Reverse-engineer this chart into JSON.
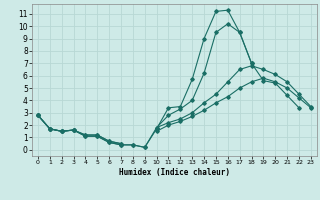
{
  "xlabel": "Humidex (Indice chaleur)",
  "bg_color": "#ceeae7",
  "grid_color": "#b8d8d5",
  "line_color": "#1a6e65",
  "xlim": [
    -0.5,
    23.5
  ],
  "ylim": [
    -0.5,
    11.8
  ],
  "xticks": [
    0,
    1,
    2,
    3,
    4,
    5,
    6,
    7,
    8,
    9,
    10,
    11,
    12,
    13,
    14,
    15,
    16,
    17,
    18,
    19,
    20,
    21,
    22,
    23
  ],
  "yticks": [
    0,
    1,
    2,
    3,
    4,
    5,
    6,
    7,
    8,
    9,
    10,
    11
  ],
  "line1_x": [
    0,
    1,
    2,
    3,
    4,
    5,
    6,
    7,
    8,
    9,
    10,
    11,
    12,
    13,
    14,
    15,
    16,
    17,
    18
  ],
  "line1_y": [
    2.8,
    1.7,
    1.5,
    1.6,
    1.1,
    1.1,
    0.6,
    0.4,
    0.4,
    0.2,
    1.7,
    3.4,
    3.5,
    5.7,
    9.0,
    11.2,
    11.3,
    9.5,
    7.0
  ],
  "line2_x": [
    0,
    1,
    2,
    3,
    4,
    5,
    6,
    7,
    8,
    9,
    10,
    11,
    12,
    13,
    14,
    15,
    16,
    17,
    18,
    19,
    20,
    21,
    22
  ],
  "line2_y": [
    2.8,
    1.7,
    1.5,
    1.6,
    1.1,
    1.1,
    0.6,
    0.4,
    0.4,
    0.2,
    1.8,
    2.8,
    3.3,
    4.0,
    6.2,
    9.5,
    10.2,
    9.5,
    7.0,
    5.6,
    5.4,
    4.4,
    3.4
  ],
  "line3_x": [
    0,
    1,
    2,
    3,
    4,
    5,
    6,
    7,
    10,
    11,
    12,
    13,
    14,
    15,
    16,
    17,
    18,
    19,
    20,
    21,
    22,
    23
  ],
  "line3_y": [
    2.8,
    1.7,
    1.5,
    1.6,
    1.2,
    1.2,
    0.7,
    0.5,
    1.8,
    2.2,
    2.5,
    3.0,
    3.8,
    4.5,
    5.5,
    6.5,
    6.8,
    6.5,
    6.1,
    5.5,
    4.5,
    3.5
  ],
  "line3_break": 8,
  "line4_x": [
    0,
    1,
    2,
    3,
    4,
    5,
    6,
    7,
    10,
    11,
    12,
    13,
    14,
    15,
    16,
    17,
    18,
    19,
    20,
    21,
    22,
    23
  ],
  "line4_y": [
    2.8,
    1.7,
    1.5,
    1.6,
    1.2,
    1.2,
    0.7,
    0.5,
    1.5,
    2.0,
    2.3,
    2.7,
    3.2,
    3.8,
    4.3,
    5.0,
    5.5,
    5.8,
    5.5,
    5.0,
    4.2,
    3.4
  ],
  "line4_break": 8
}
